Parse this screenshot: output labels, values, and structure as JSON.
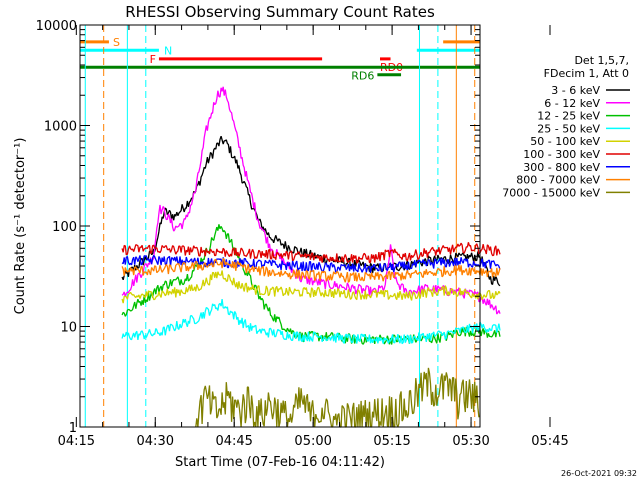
{
  "chart_data": {
    "type": "line",
    "title": "RHESSI Observing Summary Count Rates",
    "xlabel": "Start Time (07-Feb-16 04:11:42)",
    "ylabel": "Count Rate (s⁻¹ detector⁻¹)",
    "yscale": "log",
    "ylim": [
      1,
      10000
    ],
    "xlim_minutes": [
      4,
      80
    ],
    "x_unit": "minutes after 04:11:42",
    "y_ticks": [
      {
        "value": 1,
        "label": "1"
      },
      {
        "value": 10,
        "label": "10"
      },
      {
        "value": 100,
        "label": "100"
      },
      {
        "value": 1000,
        "label": "1000"
      },
      {
        "value": 10000,
        "label": "10000"
      }
    ],
    "x_ticks": [
      {
        "value": 3.3,
        "label": "04:15"
      },
      {
        "value": 18.3,
        "label": "04:30"
      },
      {
        "value": 33.3,
        "label": "04:45"
      },
      {
        "value": 48.3,
        "label": "05:00"
      },
      {
        "value": 63.3,
        "label": "05:15"
      },
      {
        "value": 78.3,
        "label": "05:30"
      },
      {
        "value": 93.3,
        "label": "05:45"
      }
    ],
    "legend": {
      "position": "right",
      "header": [
        "Det 1,5,7,",
        "FDecim 1, Att 0"
      ]
    },
    "series": [
      {
        "name": "3 - 6 keV",
        "color": "#000000",
        "points": [
          [
            12,
            30
          ],
          [
            18,
            55
          ],
          [
            20,
            140
          ],
          [
            22,
            125
          ],
          [
            24,
            160
          ],
          [
            26,
            220
          ],
          [
            28,
            420
          ],
          [
            30,
            620
          ],
          [
            31,
            720
          ],
          [
            32,
            650
          ],
          [
            34,
            400
          ],
          [
            36,
            200
          ],
          [
            38,
            110
          ],
          [
            40,
            80
          ],
          [
            42,
            68
          ],
          [
            46,
            55
          ],
          [
            50,
            48
          ],
          [
            56,
            42
          ],
          [
            60,
            38
          ],
          [
            65,
            40
          ],
          [
            70,
            45
          ],
          [
            75,
            48
          ],
          [
            80,
            50
          ],
          [
            82,
            30
          ],
          [
            84,
            28
          ]
        ]
      },
      {
        "name": "6 - 12 keV",
        "color": "#ff00ff",
        "points": [
          [
            12,
            20
          ],
          [
            18,
            50
          ],
          [
            19,
            150
          ],
          [
            20,
            140
          ],
          [
            22,
            95
          ],
          [
            24,
            110
          ],
          [
            26,
            230
          ],
          [
            28,
            900
          ],
          [
            30,
            2000
          ],
          [
            31,
            2300
          ],
          [
            32,
            1900
          ],
          [
            34,
            700
          ],
          [
            36,
            260
          ],
          [
            38,
            110
          ],
          [
            40,
            65
          ],
          [
            42,
            48
          ],
          [
            44,
            38
          ],
          [
            46,
            30
          ],
          [
            50,
            27
          ],
          [
            56,
            24
          ],
          [
            60,
            22
          ],
          [
            62,
            25
          ],
          [
            63,
            60
          ],
          [
            64,
            28
          ],
          [
            66,
            22
          ],
          [
            70,
            24
          ],
          [
            76,
            22
          ],
          [
            80,
            20
          ],
          [
            84,
            14
          ]
        ]
      },
      {
        "name": "12 - 25 keV",
        "color": "#00c000",
        "points": [
          [
            12,
            13
          ],
          [
            18,
            22
          ],
          [
            20,
            26
          ],
          [
            22,
            28
          ],
          [
            24,
            30
          ],
          [
            26,
            38
          ],
          [
            28,
            55
          ],
          [
            30,
            90
          ],
          [
            31,
            100
          ],
          [
            32,
            80
          ],
          [
            34,
            50
          ],
          [
            36,
            32
          ],
          [
            38,
            20
          ],
          [
            40,
            14
          ],
          [
            42,
            11
          ],
          [
            44,
            9
          ],
          [
            46,
            8
          ],
          [
            50,
            8
          ],
          [
            56,
            7.5
          ],
          [
            60,
            7.5
          ],
          [
            66,
            7.5
          ],
          [
            70,
            7.5
          ],
          [
            74,
            8
          ],
          [
            76,
            9
          ],
          [
            80,
            9
          ],
          [
            84,
            8
          ]
        ]
      },
      {
        "name": "25 - 50 keV",
        "color": "#00ffff",
        "points": [
          [
            12,
            8
          ],
          [
            18,
            8.5
          ],
          [
            20,
            9
          ],
          [
            22,
            10
          ],
          [
            24,
            11
          ],
          [
            26,
            12
          ],
          [
            28,
            14
          ],
          [
            30,
            16
          ],
          [
            31,
            17
          ],
          [
            32,
            15
          ],
          [
            34,
            12
          ],
          [
            36,
            10
          ],
          [
            38,
            9
          ],
          [
            42,
            8.5
          ],
          [
            46,
            8
          ],
          [
            50,
            8
          ],
          [
            56,
            7.5
          ],
          [
            60,
            7.5
          ],
          [
            66,
            7.5
          ],
          [
            70,
            8
          ],
          [
            74,
            8.5
          ],
          [
            76,
            9
          ],
          [
            80,
            10
          ],
          [
            84,
            9.5
          ]
        ]
      },
      {
        "name": "50 - 100 keV",
        "color": "#d2d200",
        "points": [
          [
            12,
            19
          ],
          [
            18,
            21
          ],
          [
            22,
            22
          ],
          [
            26,
            24
          ],
          [
            28,
            28
          ],
          [
            30,
            33
          ],
          [
            31,
            34
          ],
          [
            32,
            31
          ],
          [
            34,
            26
          ],
          [
            38,
            23
          ],
          [
            44,
            22
          ],
          [
            50,
            22
          ],
          [
            56,
            21
          ],
          [
            60,
            21
          ],
          [
            66,
            20
          ],
          [
            70,
            22
          ],
          [
            74,
            23
          ],
          [
            76,
            22
          ],
          [
            80,
            21
          ],
          [
            84,
            20
          ]
        ]
      },
      {
        "name": "100 - 300 keV",
        "color": "#e00000",
        "points": [
          [
            12,
            58
          ],
          [
            18,
            60
          ],
          [
            22,
            58
          ],
          [
            26,
            57
          ],
          [
            30,
            56
          ],
          [
            34,
            54
          ],
          [
            38,
            53
          ],
          [
            42,
            52
          ],
          [
            46,
            50
          ],
          [
            50,
            49
          ],
          [
            56,
            48
          ],
          [
            60,
            48
          ],
          [
            63,
            54
          ],
          [
            66,
            50
          ],
          [
            70,
            55
          ],
          [
            74,
            58
          ],
          [
            76,
            60
          ],
          [
            78,
            62
          ],
          [
            80,
            60
          ],
          [
            84,
            56
          ]
        ]
      },
      {
        "name": "300 - 800 keV",
        "color": "#0000ff",
        "points": [
          [
            12,
            45
          ],
          [
            18,
            46
          ],
          [
            22,
            45
          ],
          [
            26,
            44
          ],
          [
            30,
            44
          ],
          [
            34,
            43
          ],
          [
            38,
            42
          ],
          [
            42,
            41
          ],
          [
            46,
            40
          ],
          [
            50,
            39
          ],
          [
            56,
            38
          ],
          [
            60,
            38
          ],
          [
            64,
            39
          ],
          [
            68,
            41
          ],
          [
            72,
            43
          ],
          [
            76,
            44
          ],
          [
            80,
            43
          ],
          [
            84,
            40
          ]
        ]
      },
      {
        "name": "800 - 7000 keV",
        "color": "#ff8000",
        "points": [
          [
            12,
            36
          ],
          [
            18,
            36
          ],
          [
            22,
            38
          ],
          [
            26,
            40
          ],
          [
            30,
            42
          ],
          [
            31,
            43
          ],
          [
            34,
            40
          ],
          [
            38,
            36
          ],
          [
            42,
            34
          ],
          [
            46,
            33
          ],
          [
            50,
            32
          ],
          [
            56,
            31
          ],
          [
            60,
            31
          ],
          [
            64,
            32
          ],
          [
            68,
            33
          ],
          [
            72,
            35
          ],
          [
            76,
            37
          ],
          [
            80,
            36
          ],
          [
            84,
            34
          ]
        ]
      },
      {
        "name": "7000 - 15000 keV",
        "color": "#808000",
        "points": [
          [
            26,
            1.3
          ],
          [
            28,
            2.0
          ],
          [
            30,
            1.4
          ],
          [
            32,
            2.0
          ],
          [
            34,
            1.5
          ],
          [
            36,
            1.9
          ],
          [
            38,
            1.3
          ],
          [
            40,
            1.8
          ],
          [
            42,
            1.4
          ],
          [
            44,
            1.2
          ],
          [
            46,
            1.9
          ],
          [
            48,
            1.3
          ],
          [
            50,
            1.6
          ],
          [
            52,
            1.1
          ],
          [
            54,
            1.2
          ],
          [
            66,
            1.6
          ],
          [
            68,
            2.2
          ],
          [
            70,
            2.8
          ],
          [
            72,
            2.4
          ],
          [
            74,
            2.6
          ],
          [
            76,
            2.0
          ],
          [
            78,
            2.2
          ],
          [
            80,
            1.8
          ]
        ]
      }
    ],
    "annotations": {
      "flags": [
        {
          "label": "S",
          "color": "#ff8000",
          "x_start": 4,
          "x_end": 9.5,
          "y_value": 6800
        },
        {
          "label": "N",
          "color": "#00ffff",
          "x_start": 4,
          "x_end": 19,
          "y_value": 5600
        },
        {
          "label": "F",
          "color": "#ff0000",
          "x_start": 19,
          "x_end": 50,
          "y_value": 4600
        },
        {
          "label": "RD0",
          "color": "#ff0000",
          "x_start": 61,
          "x_end": 63,
          "y_value": 4600
        },
        {
          "label": "",
          "color": "#008000",
          "x_start": 4,
          "x_end": 80,
          "y_value": 3800
        },
        {
          "label": "RD6",
          "color": "#008000",
          "x_start": 60.5,
          "x_end": 65,
          "y_value": 3200
        },
        {
          "label": "",
          "color": "#00ffff",
          "x_start": 68,
          "x_end": 80,
          "y_value": 5600
        },
        {
          "label": "",
          "color": "#ff8000",
          "x_start": 73,
          "x_end": 80,
          "y_value": 6800
        }
      ],
      "vlines": [
        {
          "x": 5,
          "color": "#00ffff",
          "style": "solid"
        },
        {
          "x": 8.5,
          "color": "#ff8000",
          "style": "dashed"
        },
        {
          "x": 13,
          "color": "#00ffff",
          "style": "solid"
        },
        {
          "x": 16.5,
          "color": "#00ffff",
          "style": "dashed"
        },
        {
          "x": 68.5,
          "color": "#00ffff",
          "style": "solid"
        },
        {
          "x": 72,
          "color": "#00ffff",
          "style": "dashed"
        },
        {
          "x": 75.5,
          "color": "#ff8000",
          "style": "solid"
        },
        {
          "x": 79,
          "color": "#ff8000",
          "style": "dashed"
        }
      ]
    },
    "footer_timestamp": "26-Oct-2021 09:32"
  }
}
